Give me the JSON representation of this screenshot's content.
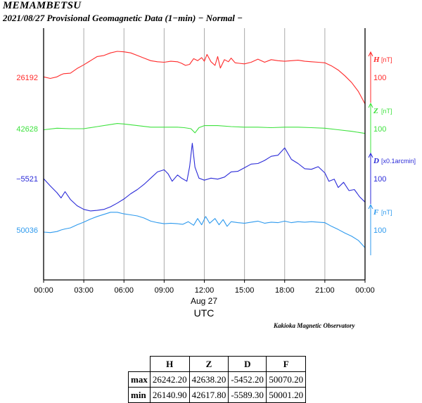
{
  "title": "MEMAMBETSU",
  "subtitle": "2021/08/27  Provisional Geomagnetic Data (1−min)  − Normal −",
  "observatory": "Kakioka Magnetic Observatory",
  "chart_data": {
    "type": "line",
    "x_axis": {
      "ticks": [
        "00:00",
        "03:00",
        "06:00",
        "09:00",
        "12:00",
        "15:00",
        "18:00",
        "21:00",
        "00:00"
      ],
      "date_label": "Aug 27",
      "label": "UTC",
      "range_hours": [
        0,
        24
      ]
    },
    "series": [
      {
        "name": "H",
        "unit": "[nT]",
        "scale_label": "100",
        "base_label": "26192",
        "color": "#ff2a2a",
        "x": [
          0,
          0.5,
          1,
          1.3,
          1.5,
          2,
          2.5,
          3,
          3.5,
          4,
          4.5,
          5,
          5.5,
          6,
          6.5,
          7,
          7.5,
          8,
          8.5,
          9,
          9.5,
          10,
          10.3,
          10.6,
          10.9,
          11.2,
          11.5,
          11.8,
          12,
          12.2,
          12.5,
          12.8,
          13,
          13.2,
          13.5,
          13.8,
          14,
          14.3,
          14.6,
          15,
          15.5,
          16,
          16.5,
          17,
          17.5,
          18,
          18.5,
          19,
          19.5,
          20,
          20.5,
          21,
          21.5,
          22,
          22.5,
          23,
          23.5,
          24
        ],
        "values": [
          26193,
          26190,
          26193,
          26197,
          26199,
          26200,
          26209,
          26216,
          26224,
          26232,
          26234,
          26239,
          26242,
          26241,
          26239,
          26234,
          26229,
          26224,
          26222,
          26221,
          26223,
          26222,
          26219,
          26215,
          26217,
          26228,
          26224,
          26230,
          26223,
          26236,
          26222,
          26215,
          26232,
          26210,
          26226,
          26222,
          26229,
          26220,
          26219,
          26218,
          26221,
          26227,
          26221,
          26226,
          26224,
          26223,
          26224,
          26225,
          26223,
          26222,
          26221,
          26220,
          26214,
          26206,
          26195,
          26182,
          26165,
          26141
        ]
      },
      {
        "name": "Z",
        "unit": "[nT]",
        "scale_label": "100",
        "base_label": "42628",
        "color": "#3ee23e",
        "x": [
          0,
          1,
          2,
          3,
          4,
          5,
          5.5,
          6,
          7,
          8,
          9,
          10,
          10.5,
          11,
          11.3,
          11.6,
          12,
          13,
          14,
          15,
          16,
          17,
          18,
          19,
          20,
          21,
          22,
          23,
          24
        ],
        "values": [
          42626,
          42629,
          42628,
          42628,
          42632,
          42636,
          42638,
          42637,
          42634,
          42631,
          42631,
          42631,
          42630,
          42628,
          42620,
          42630,
          42634,
          42634,
          42632,
          42631,
          42631,
          42630,
          42631,
          42631,
          42630,
          42629,
          42626,
          42623,
          42619
        ]
      },
      {
        "name": "D",
        "unit": "[x0.1arcmin]",
        "scale_label": "100",
        "base_label": "−5521",
        "color": "#2a2ad8",
        "x": [
          0,
          0.5,
          1,
          1.3,
          1.6,
          2,
          2.5,
          3,
          3.5,
          4,
          4.5,
          5,
          5.5,
          6,
          6.5,
          7,
          7.5,
          8,
          8.5,
          9,
          9.3,
          9.6,
          10,
          10.3,
          10.7,
          10.9,
          11.1,
          11.3,
          11.6,
          12,
          12.5,
          13,
          13.5,
          14,
          14.5,
          15,
          15.5,
          16,
          16.5,
          17,
          17.5,
          18,
          18.5,
          19,
          19.5,
          20,
          20.5,
          21,
          21.3,
          21.7,
          22,
          22.4,
          22.8,
          23.2,
          23.6,
          24
        ],
        "values": [
          -5521,
          -5535,
          -5548,
          -5558,
          -5546,
          -5561,
          -5573,
          -5580,
          -5583,
          -5582,
          -5580,
          -5575,
          -5568,
          -5560,
          -5550,
          -5542,
          -5532,
          -5520,
          -5508,
          -5504,
          -5512,
          -5526,
          -5514,
          -5520,
          -5526,
          -5498,
          -5453,
          -5499,
          -5520,
          -5524,
          -5520,
          -5522,
          -5518,
          -5508,
          -5507,
          -5500,
          -5493,
          -5492,
          -5486,
          -5478,
          -5476,
          -5462,
          -5484,
          -5492,
          -5502,
          -5503,
          -5498,
          -5510,
          -5526,
          -5522,
          -5538,
          -5528,
          -5544,
          -5542,
          -5556,
          -5566
        ]
      },
      {
        "name": "F",
        "unit": "[nT]",
        "scale_label": "100",
        "base_label": "50036",
        "color": "#2e9aee",
        "x": [
          0,
          0.5,
          1,
          1.3,
          1.6,
          2,
          2.5,
          3,
          3.5,
          4,
          4.5,
          5,
          5.5,
          6,
          6.5,
          7,
          7.5,
          8,
          8.5,
          9,
          9.5,
          10,
          10.4,
          10.8,
          11.2,
          11.5,
          11.8,
          12.1,
          12.4,
          12.8,
          13.1,
          13.4,
          13.7,
          14,
          14.5,
          15,
          15.5,
          16,
          16.5,
          17,
          17.5,
          18,
          18.5,
          19,
          19.5,
          20,
          20.5,
          21,
          21.5,
          22,
          22.5,
          23,
          23.5,
          24
        ],
        "values": [
          50032,
          50031,
          50033,
          50036,
          50038,
          50040,
          50046,
          50051,
          50057,
          50062,
          50066,
          50070,
          50070,
          50067,
          50065,
          50063,
          50059,
          50053,
          50050,
          50048,
          50049,
          50048,
          50047,
          50052,
          50045,
          50058,
          50046,
          50062,
          50049,
          50058,
          50046,
          50056,
          50043,
          50052,
          50050,
          50049,
          50051,
          50053,
          50049,
          50051,
          50050,
          50053,
          50050,
          50052,
          50051,
          50052,
          50051,
          50050,
          50043,
          50037,
          50030,
          50024,
          50016,
          50002
        ]
      }
    ],
    "table": {
      "columns": [
        "H",
        "Z",
        "D",
        "F"
      ],
      "rows": [
        {
          "label": "max",
          "values": [
            "26242.20",
            "42638.20",
            "-5452.20",
            "50070.20"
          ]
        },
        {
          "label": "min",
          "values": [
            "26140.90",
            "42617.80",
            "-5589.30",
            "50001.20"
          ]
        }
      ]
    }
  }
}
